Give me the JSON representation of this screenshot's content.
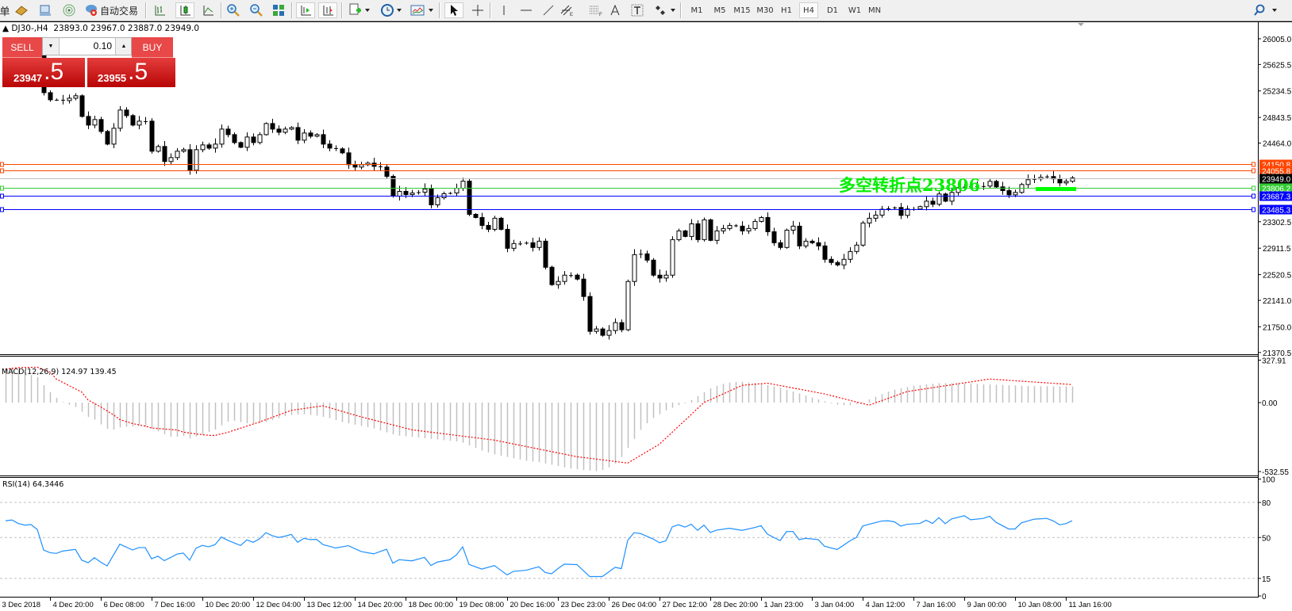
{
  "toolbar": {
    "left_text": "单",
    "autotrade_label": "自动交易",
    "timeframes": [
      "M1",
      "M5",
      "M15",
      "M30",
      "H1",
      "H4",
      "D1",
      "W1",
      "MN"
    ],
    "active_timeframe": "H4"
  },
  "info": {
    "symbol": "DJ30-,H4",
    "open": "23893.0",
    "high": "23967.0",
    "low": "23887.0",
    "close": "23949.0"
  },
  "trade_panel": {
    "sell_label": "SELL",
    "buy_label": "BUY",
    "lot": "0.10",
    "sell_price_main": "23947",
    "sell_price_big": ".5",
    "buy_price_main": "23955",
    "buy_price_big": ".5"
  },
  "annotation": {
    "text": "多空转折点23806",
    "color": "#00ee00"
  },
  "subwindows": {
    "macd_title": "MACD(12,26,9) 124.97 139.45",
    "rsi_title": "RSI(14) 64.3446"
  },
  "chart_data": [
    {
      "type": "candlestick",
      "symbol": "DJ30-",
      "timeframe": "H4",
      "ylim": [
        21345,
        26250
      ],
      "y_ticks": [
        "26005.0",
        "25625.5",
        "25234.5",
        "24843.5",
        "24464.0",
        "23302.5",
        "22911.5",
        "22520.5",
        "22141.0",
        "21750.0",
        "21370.5"
      ],
      "x_tick_labels": [
        "3 Dec 2018",
        "4 Dec 20:00",
        "6 Dec 08:00",
        "7 Dec 16:00",
        "10 Dec 20:00",
        "12 Dec 04:00",
        "13 Dec 12:00",
        "14 Dec 20:00",
        "18 Dec 00:00",
        "19 Dec 08:00",
        "20 Dec 16:00",
        "23 Dec 23:00",
        "26 Dec 04:00",
        "27 Dec 12:00",
        "28 Dec 20:00",
        "1 Jan 23:00",
        "3 Jan 04:00",
        "4 Jan 12:00",
        "7 Jan 16:00",
        "9 Jan 00:00",
        "10 Jan 08:00",
        "11 Jan 16:00"
      ],
      "close": [
        25900,
        25950,
        25880,
        25850,
        25870,
        25820,
        25209,
        25104,
        25104,
        25092,
        25127,
        25163,
        24858,
        24730,
        24812,
        24636,
        24449,
        24683,
        24952,
        24870,
        24730,
        24788,
        24788,
        24344,
        24414,
        24192,
        24250,
        24344,
        24367,
        24063,
        24367,
        24437,
        24390,
        24449,
        24671,
        24589,
        24472,
        24402,
        24554,
        24472,
        24589,
        24753,
        24671,
        24624,
        24671,
        24694,
        24507,
        24613,
        24566,
        24589,
        24449,
        24390,
        24379,
        24320,
        24145,
        24110,
        24145,
        24168,
        24121,
        24110,
        23973,
        23681,
        23751,
        23704,
        23727,
        23739,
        23786,
        23552,
        23657,
        23716,
        23727,
        23797,
        23902,
        23412,
        23365,
        23248,
        23190,
        23354,
        23190,
        22910,
        22980,
        22980,
        22992,
        22922,
        23015,
        22630,
        22373,
        22420,
        22513,
        22513,
        22455,
        22198,
        21683,
        21718,
        21625,
        21695,
        21812,
        21707,
        22420,
        22816,
        22828,
        22735,
        22513,
        22470,
        22513,
        23038,
        23167,
        23085,
        23272,
        23038,
        23330,
        23027,
        23167,
        23202,
        23248,
        23237,
        23167,
        23202,
        23307,
        23365,
        23155,
        22992,
        22922,
        23178,
        23237,
        22945,
        23015,
        22992,
        22945,
        22747,
        22700,
        22665,
        22747,
        22863,
        22957,
        23284,
        23354,
        23400,
        23487,
        23500,
        23513,
        23396,
        23490,
        23490,
        23525,
        23606,
        23560,
        23712,
        23606,
        23735,
        23805,
        23820,
        23825,
        23817,
        23829,
        23899,
        23817,
        23762,
        23700,
        23735,
        23852,
        23923,
        23935,
        23958,
        23970,
        23935,
        23876,
        23899,
        23949
      ],
      "levels": [
        {
          "label": "24150.8",
          "price": 24150.8,
          "color": "#ff4500"
        },
        {
          "label": "24055.8",
          "price": 24055.8,
          "color": "#ff4500"
        },
        {
          "label": "23949.0",
          "price": 23949.0,
          "color": "#c0c0c0",
          "label_bg": "#000000",
          "bid_line": true
        },
        {
          "label": "23806.2",
          "price": 23806.2,
          "color": "#33cc33"
        },
        {
          "label": "23687.3",
          "price": 23687.3,
          "color": "#0000ff"
        },
        {
          "label": "23485.3",
          "price": 23485.3,
          "color": "#0000ff"
        }
      ],
      "marker_color": "#00ff00"
    },
    {
      "type": "bar+line",
      "title": "MACD(12,26,9) 124.97 139.45",
      "ylim": [
        -563,
        355
      ],
      "y_ticks": [
        {
          "label": "327.91",
          "value": 327.91
        },
        {
          "label": "0.00",
          "value": 0
        },
        {
          "label": "-532.55",
          "value": -532.55
        }
      ],
      "histogram_color": "#c0c0c0",
      "signal_color": "#ff0000",
      "histogram": [
        267,
        267,
        252,
        232,
        212,
        196,
        135,
        81,
        36,
        4,
        -16,
        -34,
        -71,
        -111,
        -131,
        -168,
        -202,
        -208,
        -192,
        -186,
        -184,
        -176,
        -188,
        -202,
        -222,
        -244,
        -263,
        -263,
        -257,
        -277,
        -263,
        -249,
        -228,
        -208,
        -176,
        -147,
        -141,
        -150,
        -160,
        -165,
        -160,
        -150,
        -135,
        -120,
        -105,
        -95,
        -90,
        -90,
        -95,
        -100,
        -110,
        -120,
        -135,
        -150,
        -160,
        -170,
        -180,
        -190,
        -200,
        -215,
        -230,
        -245,
        -255,
        -260,
        -265,
        -270,
        -275,
        -280,
        -285,
        -290,
        -295,
        -300,
        -310,
        -330,
        -350,
        -370,
        -385,
        -400,
        -410,
        -420,
        -430,
        -440,
        -450,
        -455,
        -460,
        -470,
        -480,
        -490,
        -500,
        -510,
        -515,
        -520,
        -525,
        -530,
        -520,
        -500,
        -470,
        -420,
        -350,
        -280,
        -210,
        -160,
        -120,
        -90,
        -60,
        -40,
        -20,
        -5,
        20,
        50,
        80,
        110,
        130,
        145,
        155,
        160,
        160,
        155,
        150,
        145,
        135,
        125,
        115,
        100,
        85,
        70,
        55,
        40,
        25,
        10,
        -5,
        -15,
        -20,
        -20,
        -10,
        5,
        25,
        45,
        65,
        85,
        100,
        110,
        120,
        130,
        135,
        140,
        145,
        150,
        150,
        150,
        150,
        150,
        148,
        145,
        140,
        140,
        138,
        136,
        134,
        132,
        130,
        128,
        127,
        126,
        126,
        125,
        125,
        125,
        125
      ],
      "signal": [
        [
          0,
          258
        ],
        [
          2,
          270
        ],
        [
          5,
          273
        ],
        [
          7,
          236
        ],
        [
          8,
          182
        ],
        [
          10,
          131
        ],
        [
          12,
          81
        ],
        [
          13,
          20
        ],
        [
          15,
          -34
        ],
        [
          17,
          -95
        ],
        [
          18,
          -131
        ],
        [
          20,
          -162
        ],
        [
          22,
          -182
        ],
        [
          23,
          -196
        ],
        [
          25,
          -204
        ],
        [
          27,
          -212
        ],
        [
          28,
          -228
        ],
        [
          30,
          -242
        ],
        [
          32,
          -253
        ],
        [
          33,
          -253
        ],
        [
          35,
          -230
        ],
        [
          40,
          -150
        ],
        [
          45,
          -60
        ],
        [
          50,
          -25
        ],
        [
          56,
          -110
        ],
        [
          64,
          -210
        ],
        [
          77,
          -290
        ],
        [
          90,
          -418
        ],
        [
          98,
          -467
        ],
        [
          103,
          -321
        ],
        [
          110,
          0
        ],
        [
          116,
          133
        ],
        [
          120,
          150
        ],
        [
          129,
          67
        ],
        [
          136,
          -20
        ],
        [
          142,
          85
        ],
        [
          155,
          182
        ],
        [
          168,
          139
        ]
      ]
    },
    {
      "type": "line",
      "title": "RSI(14) 64.3446",
      "ylim": [
        0,
        100
      ],
      "y_ticks": [
        100,
        80,
        50,
        15,
        0
      ],
      "levels": [
        80,
        50,
        15
      ],
      "color": "#1e90ff",
      "points": [
        [
          0,
          64.3
        ],
        [
          1,
          65
        ],
        [
          2,
          62
        ],
        [
          3,
          60.6
        ],
        [
          4,
          61.1
        ],
        [
          5,
          56.8
        ],
        [
          6,
          39.3
        ],
        [
          7,
          37
        ],
        [
          8,
          36.4
        ],
        [
          9,
          38.4
        ],
        [
          11,
          39.8
        ],
        [
          12,
          30.6
        ],
        [
          13,
          28.4
        ],
        [
          14,
          32.7
        ],
        [
          15,
          28.9
        ],
        [
          16,
          25.7
        ],
        [
          18,
          44.3
        ],
        [
          20,
          39.3
        ],
        [
          21,
          41.4
        ],
        [
          22,
          41.4
        ],
        [
          23,
          31.8
        ],
        [
          24,
          34
        ],
        [
          25,
          30.2
        ],
        [
          26,
          32.9
        ],
        [
          27,
          35.8
        ],
        [
          28,
          36.7
        ],
        [
          29,
          30.6
        ],
        [
          30,
          40.9
        ],
        [
          31,
          43.2
        ],
        [
          32,
          42.1
        ],
        [
          33,
          43.9
        ],
        [
          34,
          50.4
        ],
        [
          35,
          47.6
        ],
        [
          36,
          45.4
        ],
        [
          37,
          43.2
        ],
        [
          38,
          47.9
        ],
        [
          39,
          45.9
        ],
        [
          40,
          48.9
        ],
        [
          41,
          54.1
        ],
        [
          42,
          51.6
        ],
        [
          43,
          50
        ],
        [
          44,
          51.1
        ],
        [
          45,
          52.7
        ],
        [
          46,
          45.9
        ],
        [
          47,
          49.3
        ],
        [
          48,
          48.2
        ],
        [
          49,
          48.4
        ],
        [
          50,
          43.9
        ],
        [
          51,
          42.5
        ],
        [
          52,
          41
        ],
        [
          54,
          43
        ],
        [
          56,
          38
        ],
        [
          58,
          36
        ],
        [
          60,
          40
        ],
        [
          61,
          28
        ],
        [
          62,
          31
        ],
        [
          64,
          30
        ],
        [
          66,
          33
        ],
        [
          67,
          26
        ],
        [
          68,
          29
        ],
        [
          70,
          31
        ],
        [
          71,
          35
        ],
        [
          72,
          42
        ],
        [
          73,
          27
        ],
        [
          75,
          23
        ],
        [
          77,
          26
        ],
        [
          78,
          22
        ],
        [
          79,
          18
        ],
        [
          80,
          21
        ],
        [
          82,
          22
        ],
        [
          84,
          25
        ],
        [
          85,
          20
        ],
        [
          86,
          19
        ],
        [
          87,
          23.4
        ],
        [
          88,
          27.2
        ],
        [
          90,
          26.8
        ],
        [
          92,
          16.6
        ],
        [
          94,
          16.6
        ],
        [
          96,
          24.5
        ],
        [
          97,
          23.4
        ],
        [
          98,
          47.7
        ],
        [
          99,
          54.1
        ],
        [
          100,
          53.4
        ],
        [
          102,
          48.7
        ],
        [
          103,
          45.5
        ],
        [
          104,
          47.1
        ],
        [
          105,
          59.1
        ],
        [
          106,
          60.9
        ],
        [
          107,
          58.9
        ],
        [
          108,
          61.3
        ],
        [
          109,
          56.1
        ],
        [
          110,
          60.6
        ],
        [
          111,
          54.3
        ],
        [
          112,
          56.3
        ],
        [
          114,
          57.9
        ],
        [
          116,
          56.1
        ],
        [
          118,
          58.5
        ],
        [
          119,
          60.1
        ],
        [
          120,
          52.9
        ],
        [
          122,
          47.3
        ],
        [
          123,
          55
        ],
        [
          124,
          55.2
        ],
        [
          125,
          48.2
        ],
        [
          126,
          49.3
        ],
        [
          128,
          48.2
        ],
        [
          129,
          42.5
        ],
        [
          131,
          39.8
        ],
        [
          133,
          47.1
        ],
        [
          134,
          50
        ],
        [
          135,
          59.8
        ],
        [
          136,
          61.3
        ],
        [
          138,
          64.1
        ],
        [
          139,
          64.3
        ],
        [
          140,
          63.4
        ],
        [
          141,
          59.8
        ],
        [
          142,
          61.3
        ],
        [
          144,
          62
        ],
        [
          145,
          64.8
        ],
        [
          146,
          62
        ],
        [
          147,
          67
        ],
        [
          148,
          61.8
        ],
        [
          149,
          65.9
        ],
        [
          151,
          68.6
        ],
        [
          152,
          65.2
        ],
        [
          154,
          66.3
        ],
        [
          155,
          68.2
        ],
        [
          156,
          63
        ],
        [
          158,
          57.3
        ],
        [
          159,
          57.3
        ],
        [
          160,
          62.5
        ],
        [
          162,
          65.7
        ],
        [
          164,
          66.3
        ],
        [
          165,
          64.3
        ],
        [
          166,
          60.9
        ],
        [
          167,
          61.8
        ],
        [
          168,
          64.3446
        ]
      ]
    }
  ]
}
